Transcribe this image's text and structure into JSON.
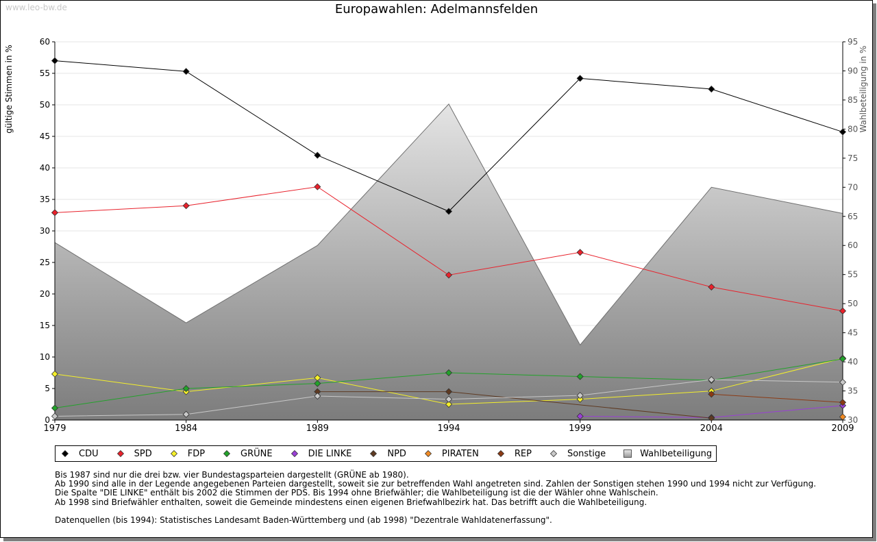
{
  "watermark": "www.leo-bw.de",
  "title": "Europawahlen: Adelmannsfelden",
  "chart_data": {
    "type": "line",
    "title": "Europawahlen: Adelmannsfelden",
    "ylabel": "gültige Stimmen in %",
    "y2label": "Wahlbeteiligung in %",
    "ylim": [
      0,
      60
    ],
    "y2lim": [
      30,
      95
    ],
    "yticks": [
      0,
      5,
      10,
      15,
      20,
      25,
      30,
      35,
      40,
      45,
      50,
      55,
      60
    ],
    "y2ticks": [
      30,
      35,
      40,
      45,
      50,
      55,
      60,
      65,
      70,
      75,
      80,
      85,
      90,
      95
    ],
    "x": [
      1979,
      1984,
      1989,
      1994,
      1999,
      2004,
      2009
    ],
    "grid": true,
    "turnout": {
      "name": "Wahlbeteiligung",
      "axis": "right",
      "values": [
        60.5,
        46.7,
        60.0,
        84.3,
        42.9,
        70.0,
        65.5
      ]
    },
    "series": [
      {
        "name": "CDU",
        "color": "#000000",
        "values": [
          57.0,
          55.3,
          42.0,
          33.1,
          54.2,
          52.5,
          45.7
        ]
      },
      {
        "name": "SPD",
        "color": "#e8212b",
        "values": [
          32.9,
          34.0,
          37.0,
          23.0,
          26.6,
          21.1,
          17.3
        ]
      },
      {
        "name": "FDP",
        "color": "#f5f02a",
        "values": [
          7.3,
          4.5,
          6.7,
          2.5,
          3.3,
          4.6,
          9.8
        ]
      },
      {
        "name": "GRÜNE",
        "color": "#22a22a",
        "values": [
          1.9,
          5.0,
          5.8,
          7.5,
          6.9,
          6.3,
          9.7
        ]
      },
      {
        "name": "DIE LINKE",
        "color": "#9a3fd6",
        "values": [
          null,
          null,
          null,
          null,
          0.6,
          0.4,
          2.3
        ]
      },
      {
        "name": "NPD",
        "color": "#5e3a22",
        "values": [
          null,
          null,
          4.5,
          4.5,
          null,
          0.3,
          null
        ]
      },
      {
        "name": "PIRATEN",
        "color": "#f08a24",
        "values": [
          null,
          null,
          null,
          null,
          null,
          null,
          0.5
        ]
      },
      {
        "name": "REP",
        "color": "#8b3a14",
        "values": [
          null,
          null,
          null,
          null,
          null,
          4.1,
          2.8
        ]
      },
      {
        "name": "Sonstige",
        "color": "#c9c9c9",
        "values": [
          0.6,
          0.9,
          3.8,
          3.3,
          3.9,
          6.4,
          6.0
        ]
      }
    ]
  },
  "legend": [
    {
      "label": "CDU",
      "color": "#000000"
    },
    {
      "label": "SPD",
      "color": "#e8212b"
    },
    {
      "label": "FDP",
      "color": "#f5f02a"
    },
    {
      "label": "GRÜNE",
      "color": "#22a22a"
    },
    {
      "label": "DIE LINKE",
      "color": "#9a3fd6"
    },
    {
      "label": "NPD",
      "color": "#5e3a22"
    },
    {
      "label": "PIRATEN",
      "color": "#f08a24"
    },
    {
      "label": "REP",
      "color": "#8b3a14"
    },
    {
      "label": "Sonstige",
      "color": "#c9c9c9"
    }
  ],
  "legend_turnout": "Wahlbeteiligung",
  "notes": {
    "line1": "Bis 1987 sind nur die drei bzw. vier Bundestagsparteien dargestellt (GRÜNE ab 1980).",
    "line2": "Ab 1990 sind alle in der Legende angegebenen Parteien dargestellt, soweit sie zur betreffenden Wahl angetreten sind. Zahlen der Sonstigen stehen 1990 und 1994 nicht zur Verfügung.",
    "line3": "Die Spalte \"DIE LINKE\" enthält bis 2002 die Stimmen der PDS. Bis 1994 ohne Briefwähler; die Wahlbeteiligung ist die der Wähler ohne Wahlschein.",
    "line4": "Ab 1998 sind Briefwähler enthalten, soweit die Gemeinde mindestens einen eigenen Briefwahlbezirk hat. Das betrifft auch die Wahlbeteiligung.",
    "source": "Datenquellen (bis 1994): Statistisches Landesamt Baden-Württemberg und (ab 1998) \"Dezentrale Wahldatenerfassung\"."
  }
}
